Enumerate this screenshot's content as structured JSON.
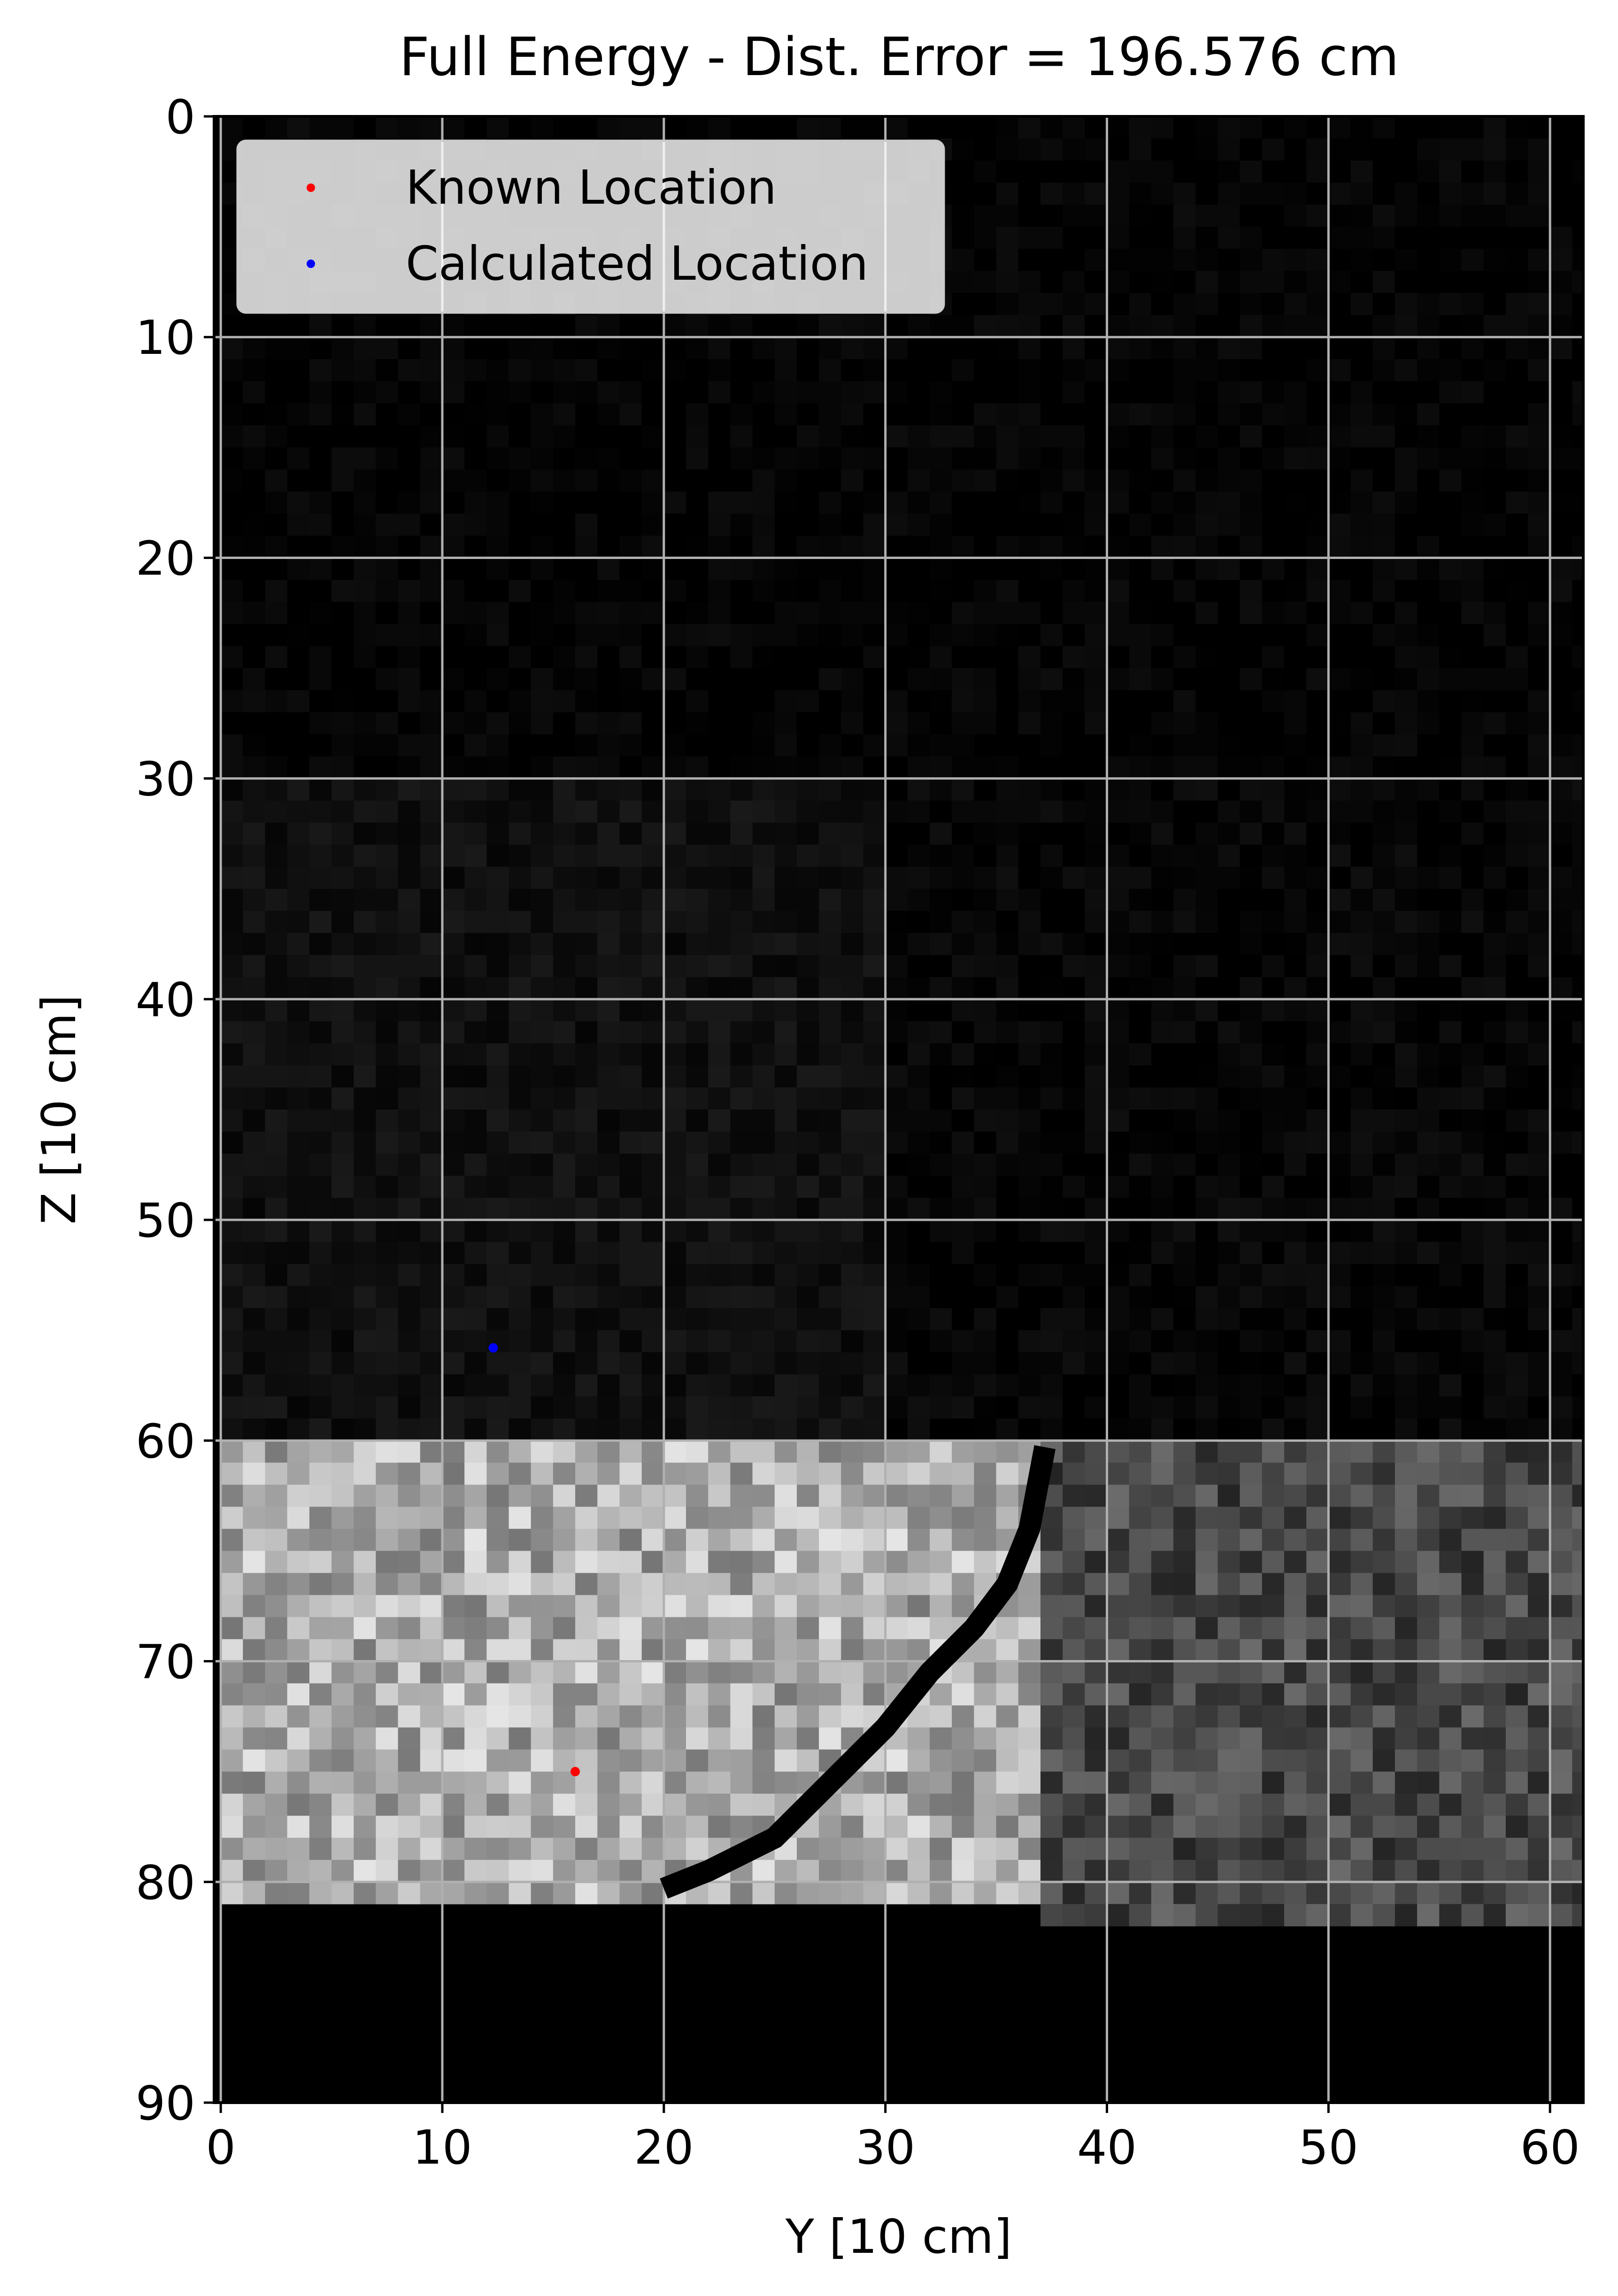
{
  "chart_data": {
    "type": "heatmap",
    "title": "Full Energy - Dist. Error = 196.576 cm",
    "xlabel": "Y [10 cm]",
    "ylabel": "Z [10 cm]",
    "xlim": [
      -0.3,
      61.5
    ],
    "ylim": [
      90,
      0
    ],
    "y_axis_inverted": true,
    "xticks": [
      0,
      10,
      20,
      30,
      40,
      50,
      60
    ],
    "yticks": [
      0,
      10,
      20,
      30,
      40,
      50,
      60,
      70,
      80,
      90
    ],
    "grid": true,
    "colormap": "gray",
    "legend": {
      "placement": "upper-left",
      "entries": [
        {
          "label": "Known Location",
          "color": "#ff0000"
        },
        {
          "label": "Calculated Location",
          "color": "#0000ff"
        }
      ]
    },
    "series": [
      {
        "name": "Known Location",
        "color": "#ff0000",
        "points": [
          [
            16.0,
            75.0
          ]
        ]
      },
      {
        "name": "Calculated Location",
        "color": "#0000ff",
        "points": [
          [
            12.3,
            55.8
          ]
        ]
      }
    ],
    "intensity_regions": [
      {
        "z_range": [
          0,
          30
        ],
        "y_range": [
          0,
          61.5
        ],
        "level": 0.01
      },
      {
        "z_range": [
          30,
          60
        ],
        "y_range": [
          0,
          30
        ],
        "level": 0.06
      },
      {
        "z_range": [
          30,
          60
        ],
        "y_range": [
          30,
          61.5
        ],
        "level": 0.02
      },
      {
        "z_range": [
          60,
          81
        ],
        "y_range": [
          0,
          37
        ],
        "level": 0.68
      },
      {
        "z_range": [
          60,
          82
        ],
        "y_range": [
          37,
          61.5
        ],
        "level": 0.28
      },
      {
        "z_range": [
          81,
          90
        ],
        "y_range": [
          0,
          61.5
        ],
        "level": 0.0
      }
    ],
    "boundary_curve": [
      [
        37.2,
        60.3
      ],
      [
        36.5,
        64
      ],
      [
        35.5,
        66.5
      ],
      [
        34,
        68.5
      ],
      [
        32,
        70.5
      ],
      [
        30,
        73
      ],
      [
        28,
        75
      ],
      [
        25,
        78
      ],
      [
        22,
        79.5
      ],
      [
        20,
        80.3
      ]
    ]
  }
}
